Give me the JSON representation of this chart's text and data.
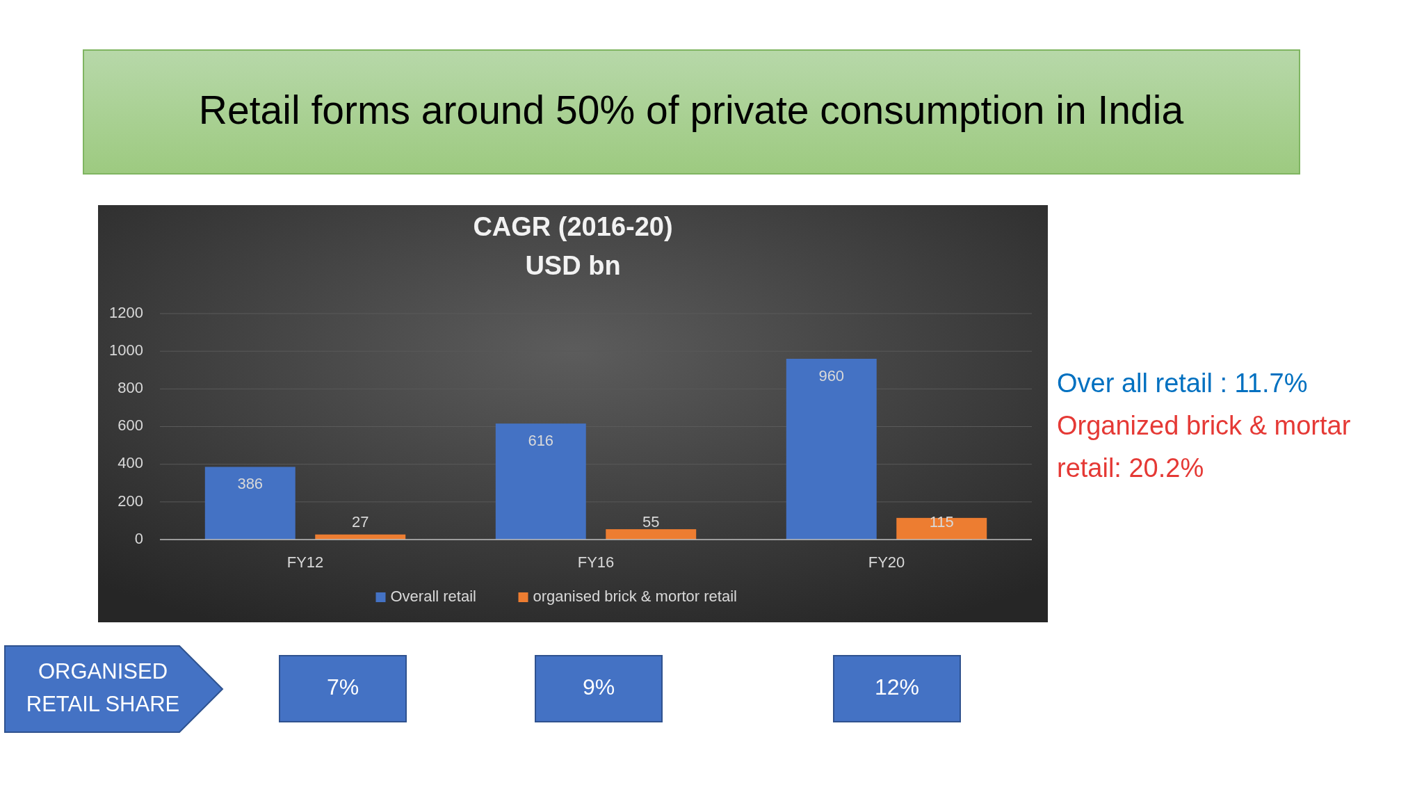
{
  "chart_data": {
    "type": "bar",
    "title": "Retail forms around 50% of private consumption in India",
    "subtitle": "CAGR (2016-20) USD bn",
    "categories": [
      "FY12",
      "FY16",
      "FY20"
    ],
    "series": [
      {
        "name": "Overall retail",
        "color": "#4472c4",
        "values": [
          386,
          616,
          960
        ]
      },
      {
        "name": "organised brick & mortor retail",
        "color": "#ed7d31",
        "values": [
          27,
          55,
          115
        ]
      }
    ],
    "ylim": [
      0,
      1200
    ],
    "yticks": [
      0,
      200,
      400,
      600,
      800,
      1000,
      1200
    ],
    "grid": "y",
    "legend": "bottom",
    "data_labels": true,
    "annotations": [
      "Over all retail : 11.7%",
      "Organized brick & mortar retail: 20.2%",
      "ORGANISED RETAIL SHARE",
      "7%",
      "9%",
      "12%"
    ]
  }
}
